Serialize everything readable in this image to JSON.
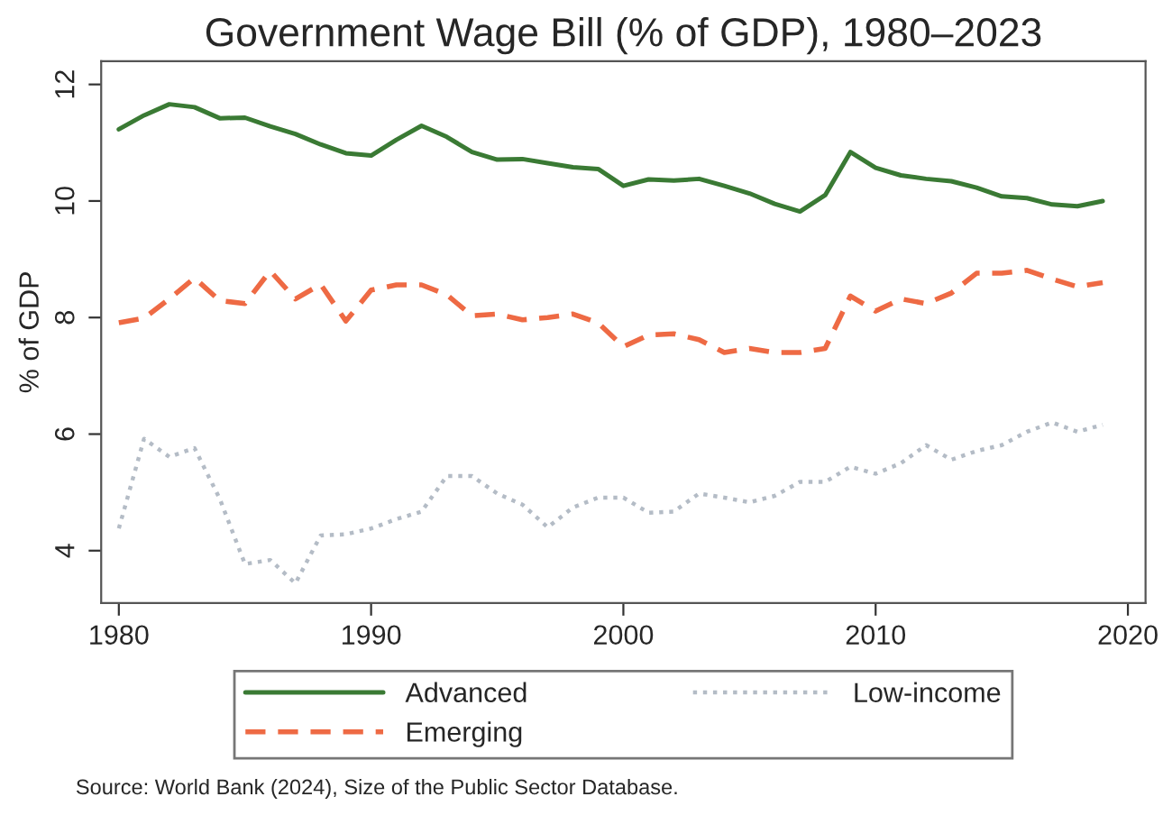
{
  "chart_data": {
    "type": "line",
    "title": "Government Wage Bill (% of GDP), 1980–2023",
    "ylabel": "% of GDP",
    "x": [
      1980,
      1981,
      1982,
      1983,
      1984,
      1985,
      1986,
      1987,
      1988,
      1989,
      1990,
      1991,
      1992,
      1993,
      1994,
      1995,
      1996,
      1997,
      1998,
      1999,
      2000,
      2001,
      2002,
      2003,
      2004,
      2005,
      2006,
      2007,
      2008,
      2009,
      2010,
      2011,
      2012,
      2013,
      2014,
      2015,
      2016,
      2017,
      2018,
      2019
    ],
    "series": [
      {
        "name": "Advanced",
        "color": "#3a7a34",
        "line_style": "solid",
        "values": [
          11.23,
          11.47,
          11.66,
          11.61,
          11.42,
          11.43,
          11.28,
          11.15,
          10.97,
          10.82,
          10.78,
          11.05,
          11.29,
          11.1,
          10.84,
          10.71,
          10.72,
          10.65,
          10.58,
          10.55,
          10.26,
          10.37,
          10.35,
          10.38,
          10.26,
          10.13,
          9.95,
          9.82,
          10.1,
          10.84,
          10.57,
          10.44,
          10.38,
          10.34,
          10.23,
          10.08,
          10.05,
          9.94,
          9.91,
          10.0
        ]
      },
      {
        "name": "Emerging",
        "color": "#ee6a44",
        "line_style": "dashed",
        "values": [
          7.91,
          7.99,
          8.32,
          8.68,
          8.29,
          8.24,
          8.8,
          8.32,
          8.57,
          7.94,
          8.47,
          8.56,
          8.56,
          8.39,
          8.03,
          8.06,
          7.96,
          8.0,
          8.06,
          7.91,
          7.5,
          7.7,
          7.72,
          7.62,
          7.4,
          7.47,
          7.4,
          7.4,
          7.47,
          8.37,
          8.11,
          8.32,
          8.24,
          8.42,
          8.76,
          8.76,
          8.81,
          8.66,
          8.53,
          8.6
        ]
      },
      {
        "name": "Low-income",
        "color": "#b4bcc6",
        "line_style": "dotted",
        "values": [
          4.38,
          5.92,
          5.61,
          5.76,
          4.89,
          3.77,
          3.84,
          3.44,
          4.26,
          4.28,
          4.38,
          4.54,
          4.67,
          5.28,
          5.28,
          4.98,
          4.79,
          4.4,
          4.74,
          4.91,
          4.91,
          4.65,
          4.67,
          4.98,
          4.91,
          4.83,
          4.94,
          5.18,
          5.18,
          5.44,
          5.32,
          5.5,
          5.81,
          5.56,
          5.71,
          5.81,
          6.04,
          6.2,
          6.04,
          6.16
        ]
      }
    ],
    "xlim": [
      1979.3,
      2020.7
    ],
    "xticks": [
      1980,
      1990,
      2000,
      2010,
      2020
    ],
    "ylim": [
      3.1,
      12.4
    ],
    "yticks": [
      4,
      6,
      8,
      10,
      12
    ],
    "grid": false,
    "legend": "bottom",
    "marker": "none",
    "annotations": [
      "Source: World Bank (2024), Size of the Public Sector Database."
    ]
  }
}
